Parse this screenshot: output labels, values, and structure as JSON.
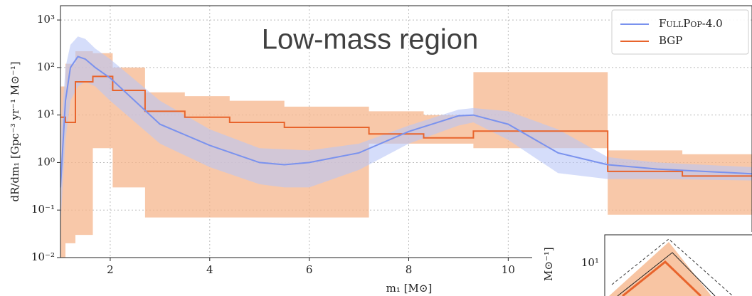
{
  "chart_data": {
    "type": "line",
    "title": "Low-mass region",
    "xlabel": "m₁ [M⊙]",
    "ylabel": "dR/dm₁ [Gpc⁻³ yr⁻¹ M⊙⁻¹]",
    "log_y": true,
    "grid": true,
    "legend": "upper right",
    "xlim": [
      1,
      14.9
    ],
    "xticks": [
      2,
      4,
      6,
      8,
      10
    ],
    "ylim": [
      0.01,
      2000
    ],
    "yticks": [
      {
        "value": 0.01,
        "label": "10⁻²"
      },
      {
        "value": 0.1,
        "label": "10⁻¹"
      },
      {
        "value": 1,
        "label": "10⁰"
      },
      {
        "value": 10,
        "label": "10¹"
      },
      {
        "value": 100,
        "label": "10²"
      },
      {
        "value": 1000,
        "label": "10³"
      }
    ],
    "series": [
      {
        "name": "FullPop-4.0",
        "color": "#7a92ee",
        "band_color": "#b9c6f6",
        "x": [
          1.0,
          1.1,
          1.2,
          1.35,
          1.5,
          1.7,
          2,
          3,
          4,
          5,
          5.5,
          6,
          7,
          8,
          9,
          9.3,
          10,
          11,
          12,
          13,
          14.9
        ],
        "values": [
          0.3,
          20,
          100,
          170,
          150,
          100,
          60,
          6.4,
          2.3,
          1.0,
          0.9,
          1.0,
          1.6,
          4.5,
          9.6,
          10,
          6.4,
          1.6,
          0.9,
          0.73,
          0.58
        ],
        "upper": [
          3,
          100,
          300,
          450,
          400,
          250,
          150,
          20,
          5,
          2,
          1.9,
          1.8,
          2.5,
          6,
          13,
          14,
          12,
          5,
          1.3,
          1.0,
          0.8
        ],
        "lower": [
          0.05,
          3,
          20,
          40,
          50,
          40,
          20,
          2.5,
          0.8,
          0.35,
          0.3,
          0.3,
          0.7,
          2.5,
          6,
          7,
          3,
          0.6,
          0.45,
          0.45,
          0.42
        ]
      },
      {
        "name": "BGP",
        "color": "#e8642c",
        "band_color": "#f6b68c",
        "step": true,
        "bins": [
          1.0,
          1.1,
          1.3,
          1.65,
          2.05,
          2.7,
          3.5,
          4.4,
          5.5,
          7.2,
          8.3,
          9.3,
          12.0,
          13.5,
          14.9
        ],
        "values": [
          9,
          7,
          50,
          65,
          33,
          12,
          9,
          7,
          5.5,
          4,
          3.3,
          4.6,
          0.65,
          0.52
        ],
        "upper": [
          40,
          120,
          220,
          200,
          100,
          30,
          25,
          20,
          15,
          12,
          10,
          80,
          1.8,
          1.5
        ],
        "lower": [
          0.01,
          0.02,
          0.03,
          2,
          0.3,
          0.07,
          0.07,
          0.07,
          0.07,
          2.5,
          2.5,
          2,
          0.08,
          0.08
        ]
      }
    ]
  },
  "inset": {
    "ytick_label": "10¹",
    "ylabel": "M⊙⁻¹]"
  }
}
